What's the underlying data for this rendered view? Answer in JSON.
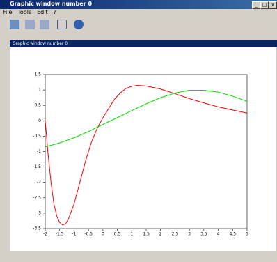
{
  "window": {
    "title": "Graphic window number 0",
    "menu": [
      "File",
      "Tools",
      "Edit",
      "?"
    ],
    "subtitle": "Graphic window number 0"
  },
  "chart_data": {
    "type": "line",
    "xlim": [
      -2,
      5
    ],
    "ylim": [
      -3.5,
      1.5
    ],
    "xticks": [
      -2,
      -1.5,
      -1,
      -0.5,
      0,
      0.5,
      1,
      1.5,
      2,
      2.5,
      3,
      3.5,
      4,
      4.5,
      5
    ],
    "yticks": [
      1.5,
      1,
      0.5,
      0,
      -0.5,
      -1,
      -1.5,
      -2,
      -2.5,
      -3,
      -3.5
    ],
    "series": [
      {
        "color": "#ff0000",
        "x": [
          -2,
          -1.9,
          -1.8,
          -1.7,
          -1.6,
          -1.5,
          -1.4,
          -1.3,
          -1.2,
          -1,
          -0.8,
          -0.6,
          -0.4,
          -0.2,
          0,
          0.2,
          0.4,
          0.6,
          0.8,
          1,
          1.2,
          1.5,
          2,
          2.5,
          3,
          3.5,
          4,
          4.5,
          5
        ],
        "values": [
          0,
          -1.1,
          -2,
          -2.7,
          -3.1,
          -3.3,
          -3.38,
          -3.35,
          -3.2,
          -2.7,
          -2,
          -1.3,
          -0.7,
          -0.25,
          0.1,
          0.4,
          0.7,
          0.9,
          1.05,
          1.12,
          1.15,
          1.13,
          1.03,
          0.88,
          0.72,
          0.58,
          0.45,
          0.35,
          0.25
        ]
      },
      {
        "color": "#00dd00",
        "x": [
          -2,
          -1.5,
          -1,
          -0.5,
          0,
          0.5,
          1,
          1.5,
          2,
          2.5,
          3,
          3.5,
          4,
          4.5,
          5
        ],
        "values": [
          -0.85,
          -0.72,
          -0.55,
          -0.35,
          -0.12,
          0.1,
          0.33,
          0.55,
          0.75,
          0.9,
          0.99,
          0.99,
          0.93,
          0.8,
          0.63
        ]
      }
    ]
  }
}
